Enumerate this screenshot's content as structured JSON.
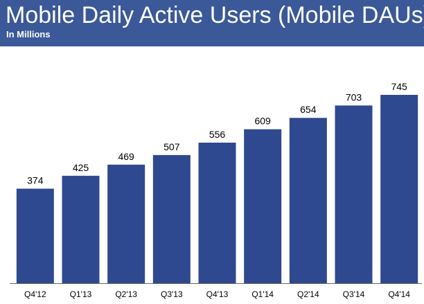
{
  "header": {
    "title": "Mobile Daily Active Users (Mobile DAUs)",
    "subtitle": "In Millions"
  },
  "colors": {
    "header_background": "#3b5998",
    "bar": "#2f4990",
    "baseline": "#666666"
  },
  "chart_data": {
    "type": "bar",
    "title": "Mobile Daily Active Users (Mobile DAUs)",
    "subtitle": "In Millions",
    "categories": [
      "Q4'12",
      "Q1'13",
      "Q2'13",
      "Q3'13",
      "Q4'13",
      "Q1'14",
      "Q2'14",
      "Q3'14",
      "Q4'14"
    ],
    "values": [
      374,
      425,
      469,
      507,
      556,
      609,
      654,
      703,
      745
    ],
    "data_labels": [
      "374",
      "425",
      "469",
      "507",
      "556",
      "609",
      "654",
      "703",
      "745"
    ],
    "xlabel": "",
    "ylabel": "",
    "ylim": [
      0,
      745
    ],
    "grid": false,
    "legend": "none"
  }
}
